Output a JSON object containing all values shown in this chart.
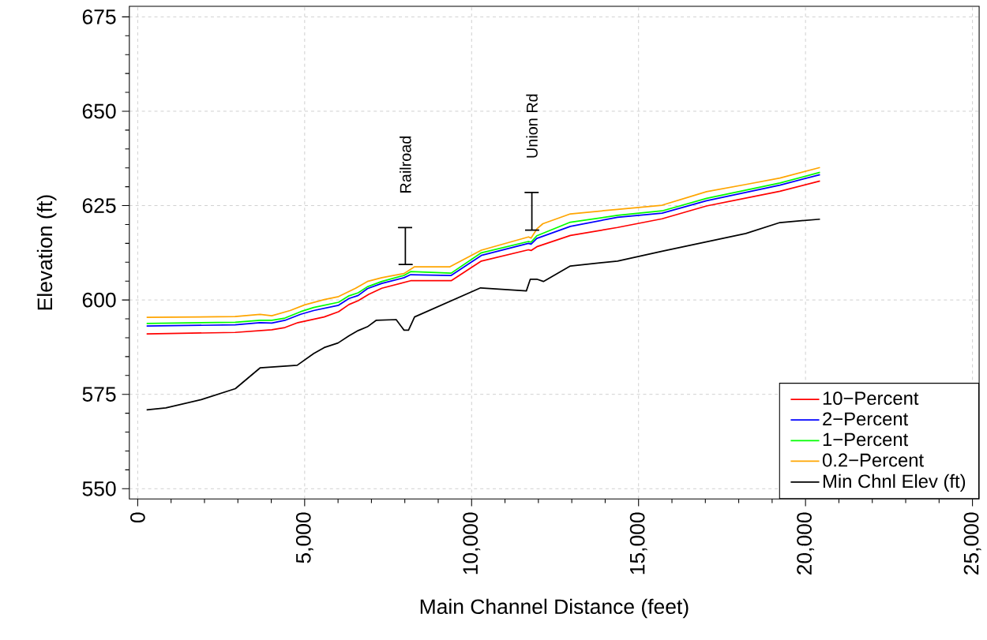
{
  "chart_data": {
    "type": "line",
    "xlabel": "Main Channel Distance (feet)",
    "ylabel": "Elevation (ft)",
    "xlim": [
      -250,
      25200
    ],
    "ylim": [
      547.3,
      677.8
    ],
    "xticks": [
      {
        "value": 0,
        "label": "0"
      },
      {
        "value": 5000,
        "label": "5,000"
      },
      {
        "value": 10000,
        "label": "10,000"
      },
      {
        "value": 15000,
        "label": "15,000"
      },
      {
        "value": 20000,
        "label": "20,000"
      },
      {
        "value": 25000,
        "label": "25,000"
      }
    ],
    "yticks": [
      550,
      575,
      600,
      625,
      650,
      675
    ],
    "grid": true,
    "legend": "bottom right",
    "line_style": "solid",
    "series": [
      {
        "name": "10−Percent",
        "color": "#ff0000",
        "x": [
          268,
          2918,
          4016,
          4409,
          4800,
          5586,
          6016,
          6329,
          6605,
          6918,
          7311,
          8174,
          9388,
          10292,
          11704,
          11781,
          11953,
          12958,
          14369,
          15704,
          17035,
          19233,
          20433
        ],
        "values": [
          591.0,
          591.4,
          592.1,
          592.7,
          594.0,
          595.5,
          596.9,
          598.8,
          599.8,
          601.5,
          603.1,
          605.1,
          605.1,
          610.3,
          613.3,
          613.1,
          614.1,
          617.1,
          619.2,
          621.5,
          624.9,
          628.8,
          631.5
        ]
      },
      {
        "name": "2−Percent",
        "color": "#0000ff",
        "x": [
          268,
          2918,
          3664,
          4016,
          4409,
          4880,
          5271,
          6016,
          6329,
          6605,
          6880,
          7311,
          7976,
          8174,
          9388,
          10292,
          11704,
          11781,
          11953,
          12958,
          14369,
          15704,
          17035,
          19233,
          20433
        ],
        "values": [
          593.1,
          593.4,
          594.0,
          593.9,
          594.6,
          596.2,
          597.2,
          598.6,
          600.4,
          601.2,
          603.0,
          604.4,
          605.9,
          606.7,
          606.5,
          611.8,
          615.0,
          614.8,
          616.3,
          619.5,
          621.9,
          623.0,
          626.3,
          630.4,
          633.2
        ]
      },
      {
        "name": "1−Percent",
        "color": "#00ff00",
        "x": [
          268,
          2918,
          3664,
          4016,
          4409,
          4880,
          5271,
          6016,
          6329,
          6605,
          6880,
          7311,
          7976,
          8174,
          9388,
          10292,
          11704,
          11781,
          11953,
          12958,
          14369,
          15704,
          17035,
          19233,
          20433
        ],
        "values": [
          593.8,
          594.1,
          594.6,
          594.6,
          595.2,
          596.9,
          598.0,
          599.4,
          601.1,
          601.9,
          603.5,
          604.9,
          606.5,
          607.5,
          607.1,
          612.5,
          615.5,
          615.3,
          617.0,
          620.6,
          622.4,
          623.6,
          626.9,
          631.0,
          633.8
        ]
      },
      {
        "name": "0.2−Percent",
        "color": "#ffa500",
        "x": [
          268,
          2918,
          3664,
          4016,
          4565,
          4998,
          5586,
          6016,
          6527,
          6880,
          7311,
          7976,
          8292,
          9351,
          10292,
          11704,
          11781,
          11953,
          12134,
          12958,
          14369,
          15704,
          17035,
          18212,
          19233,
          20433
        ],
        "values": [
          595.4,
          595.6,
          596.2,
          595.8,
          597.2,
          598.7,
          600.1,
          600.9,
          603.1,
          604.9,
          605.9,
          607.0,
          608.8,
          608.8,
          613.2,
          616.7,
          616.4,
          618.8,
          620.2,
          622.8,
          624.0,
          625.1,
          628.7,
          630.6,
          632.3,
          635.1
        ]
      },
      {
        "name": "Min Chnl Elev (ft)",
        "color": "#000000",
        "x": [
          268,
          842,
          1904,
          2925,
          3664,
          4776,
          5271,
          5586,
          6000,
          6329,
          6605,
          6880,
          7139,
          7741,
          7976,
          8111,
          8292,
          10268,
          11640,
          11758,
          11953,
          12151,
          12958,
          14369,
          15704,
          18212,
          19233,
          20433
        ],
        "values": [
          570.9,
          571.4,
          573.6,
          576.5,
          582.0,
          582.7,
          585.8,
          587.4,
          588.6,
          590.5,
          591.9,
          592.9,
          594.6,
          594.8,
          592.0,
          592.0,
          595.5,
          603.2,
          602.4,
          605.5,
          605.5,
          604.9,
          609.0,
          610.3,
          612.9,
          617.6,
          620.5,
          621.4
        ]
      },
      {
        "color": "#000000",
        "x": [
          7812,
          8220,
          8016,
          8016,
          7812,
          8220
        ],
        "values": [
          609.4,
          609.4,
          609.4,
          619.2,
          619.2,
          619.2
        ]
      },
      {
        "color": "#000000",
        "x": [
          11601,
          12009,
          11805,
          11805,
          11601,
          12009
        ],
        "values": [
          618.5,
          618.5,
          618.5,
          628.5,
          628.5,
          628.5
        ]
      }
    ],
    "annotations": [
      {
        "text": "Railroad",
        "x": 8016,
        "y": 619.2
      },
      {
        "text": "Union Rd",
        "x": 11805,
        "y": 628.5
      }
    ]
  }
}
